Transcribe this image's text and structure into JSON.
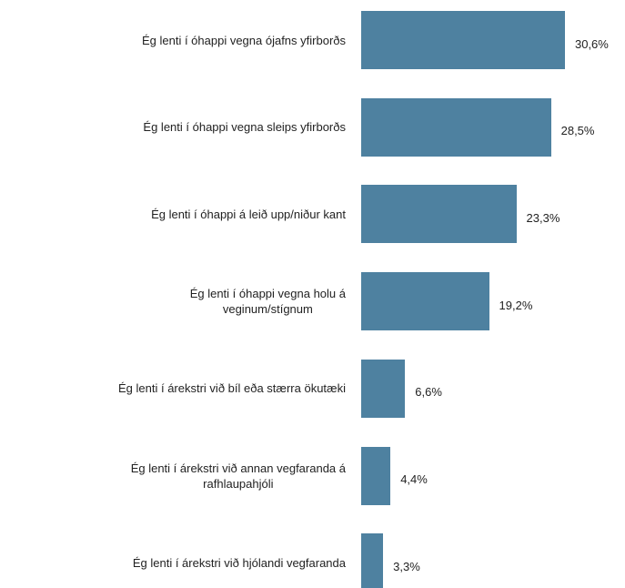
{
  "chart_data": {
    "type": "bar",
    "orientation": "horizontal",
    "categories": [
      "Ég lenti í óhappi vegna ójafns yfirborðs",
      "Ég lenti í óhappi vegna sleips yfirborðs",
      "Ég lenti í óhappi á leið upp/niður kant",
      "Ég lenti í óhappi vegna holu á\nveginum/stígnum",
      "Ég lenti í árekstri við bíl eða stærra ökutæki",
      "Ég lenti í árekstri við annan vegfaranda á\nrafhlaupahjóli",
      "Ég lenti í árekstri við hjólandi vegfaranda"
    ],
    "values": [
      30.6,
      28.5,
      23.3,
      19.2,
      6.6,
      4.4,
      3.3
    ],
    "value_labels": [
      "30,6%",
      "28,5%",
      "23,3%",
      "19,2%",
      "6,6%",
      "4,4%",
      "3,3%"
    ],
    "color": "#4e81a0"
  }
}
